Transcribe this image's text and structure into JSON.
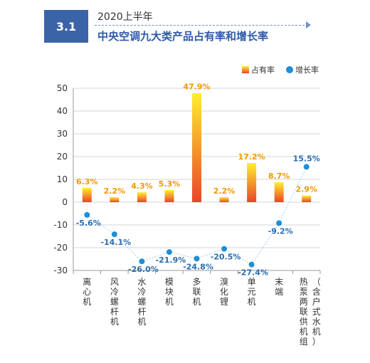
{
  "header": {
    "section": "3.1",
    "period": "2020上半年",
    "title": "中央空调九大类产品占有率和增长率"
  },
  "colors": {
    "share_top": "#ffee2e",
    "share_bottom": "#e8452a",
    "growth": "#1e8fd6",
    "share_label": "#f39800",
    "growth_label": "#2a6cb0",
    "header_blue": "#3b63a8"
  },
  "chart_data": {
    "type": "bar",
    "title": "中央空调九大类产品占有率和增长率",
    "categories": [
      "离心机",
      "风冷螺杆机",
      "水冷螺杆机",
      "模块机",
      "多联机",
      "溴化锂",
      "单元机",
      "末端",
      "热泵两联供机组（含户式水机）"
    ],
    "series": [
      {
        "name": "占有率",
        "type": "bar",
        "values": [
          6.3,
          2.2,
          4.3,
          5.3,
          47.9,
          2.2,
          17.2,
          8.7,
          2.9
        ],
        "labels": [
          "6.3%",
          "2.2%",
          "4.3%",
          "5.3%",
          "47.9%",
          "2.2%",
          "17.2%",
          "8.7%",
          "2.9%"
        ]
      },
      {
        "name": "增长率",
        "type": "line",
        "values": [
          -5.6,
          -14.1,
          -26.0,
          -21.9,
          -24.8,
          -20.5,
          -27.4,
          -9.2,
          15.5
        ],
        "labels": [
          "-5.6%",
          "-14.1%",
          "-26.0%",
          "-21.9%",
          "-24.8%",
          "-20.5%",
          "-27.4%",
          "-9.2%",
          "15.5%"
        ]
      }
    ],
    "ylim": [
      -30,
      50
    ],
    "yticks": [
      "50",
      "40",
      "30",
      "20",
      "10",
      "0",
      "-10",
      "-20",
      "-30"
    ],
    "legend_position": "top-right",
    "grid": true
  }
}
